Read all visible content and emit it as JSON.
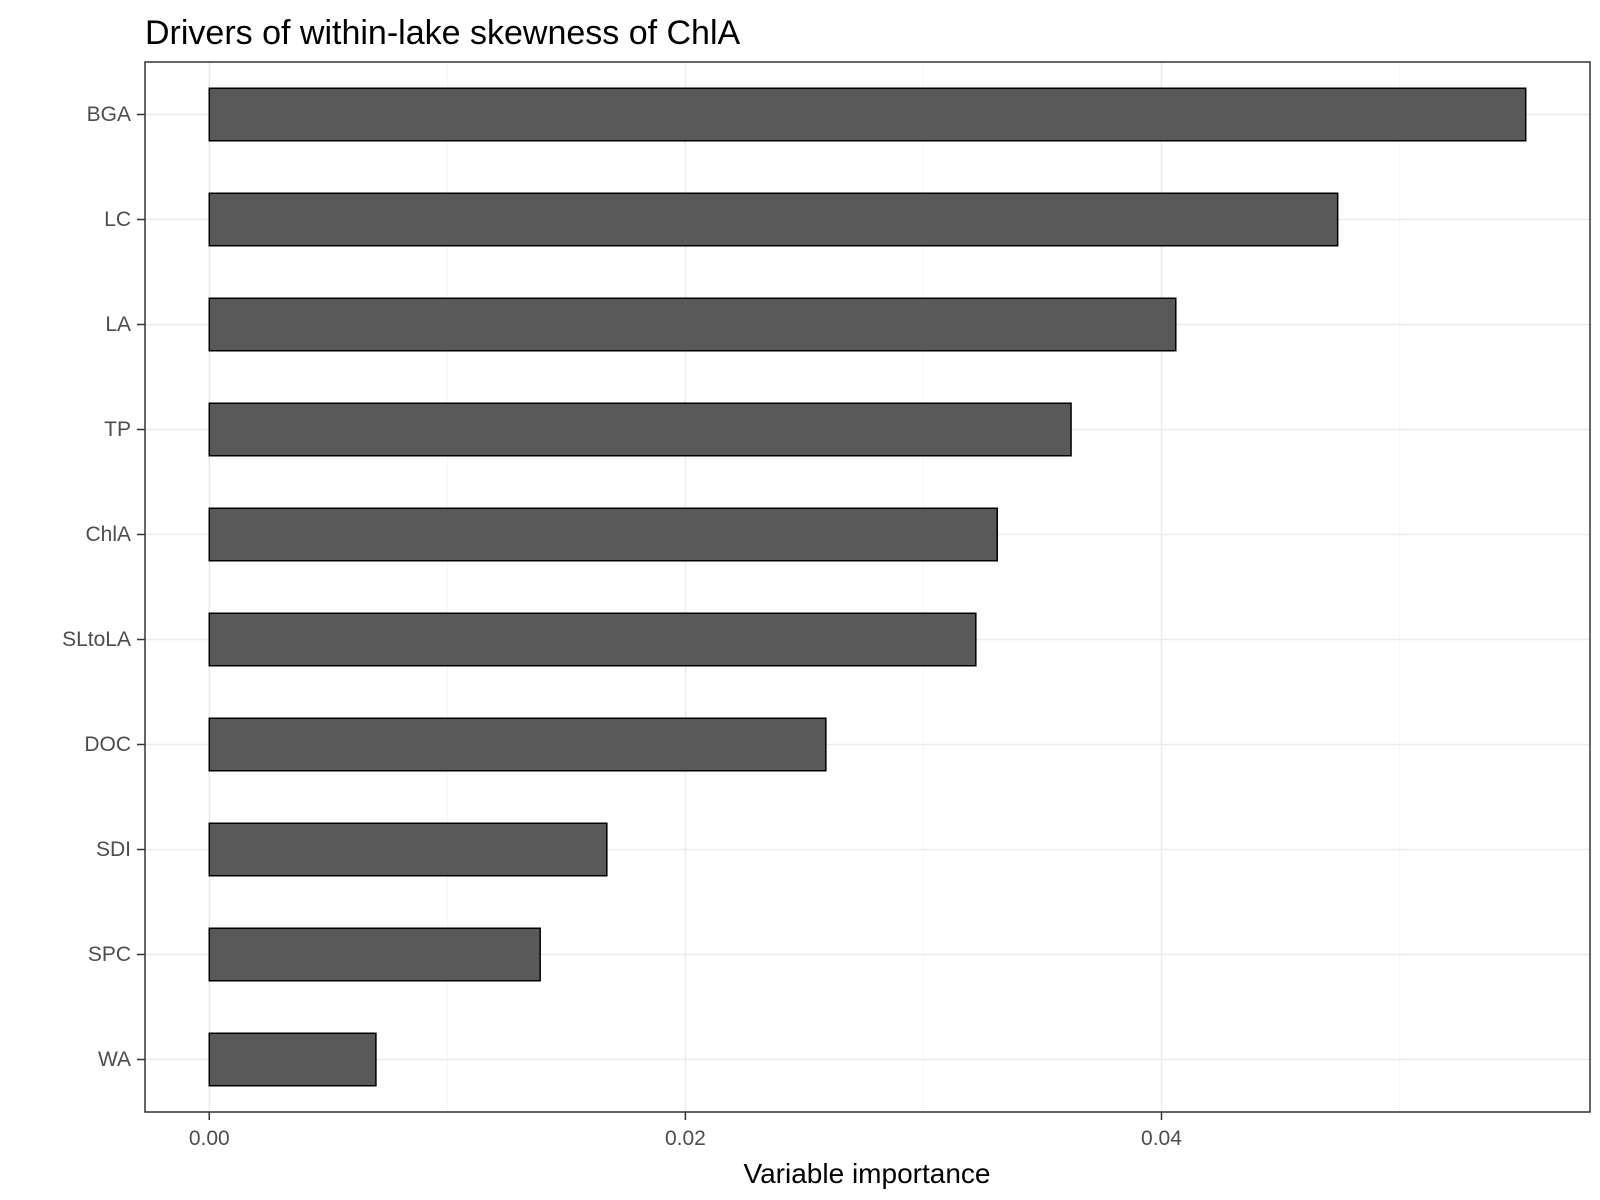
{
  "chart_data": {
    "type": "bar",
    "orientation": "horizontal",
    "title": "Drivers of within-lake skewness of ChlA",
    "xlabel": "Variable importance",
    "ylabel": "",
    "categories": [
      "BGA",
      "LC",
      "LA",
      "TP",
      "ChlA",
      "SLtoLA",
      "DOC",
      "SDI",
      "SPC",
      "WA"
    ],
    "values": [
      0.0553,
      0.0474,
      0.0406,
      0.0362,
      0.0331,
      0.0322,
      0.0259,
      0.0167,
      0.0139,
      0.007
    ],
    "xlim": [
      -0.0027,
      0.058
    ],
    "x_ticks": [
      0.0,
      0.02,
      0.04
    ],
    "x_tick_labels": [
      "0.00",
      "0.02",
      "0.04"
    ],
    "grid": true,
    "legend": "none",
    "colors": {
      "bar_fill": "#595959",
      "bar_stroke": "#000000",
      "grid_major": "#ebebeb",
      "grid_minor": "#f5f5f5",
      "panel_border": "#333333",
      "tick_text": "#4d4d4d"
    }
  }
}
